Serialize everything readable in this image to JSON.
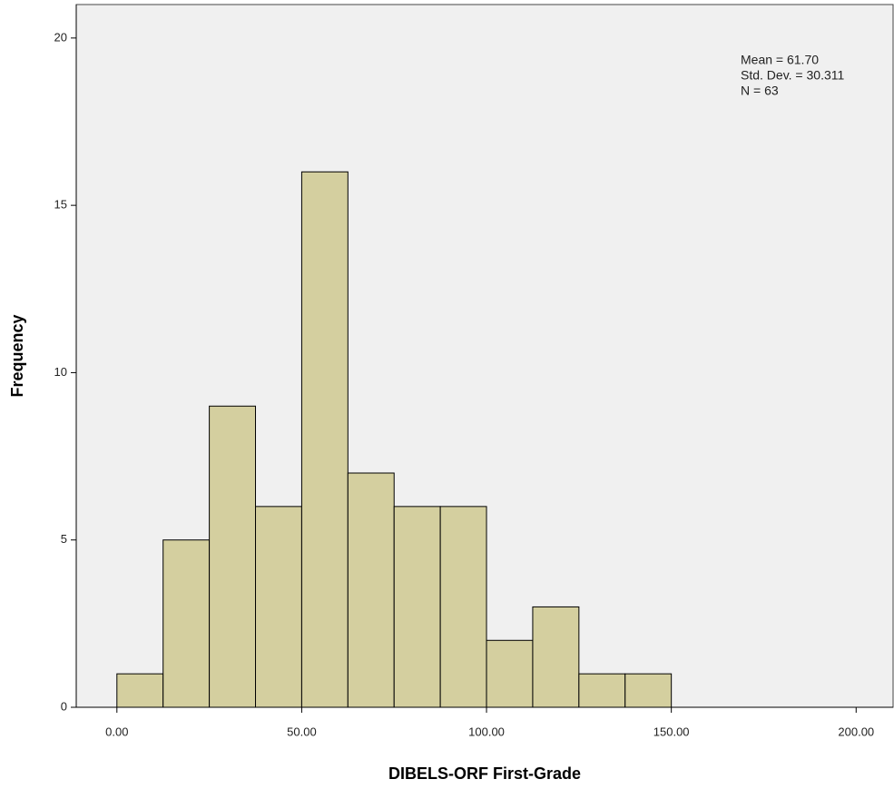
{
  "chart_data": {
    "type": "histogram",
    "x_label": "DIBELS-ORF First-Grade",
    "y_label": "Frequency",
    "annotations": [
      "Mean = 61.70",
      "Std. Dev. = 30.311",
      "N = 63"
    ],
    "bins": [
      0,
      12.5,
      25,
      37.5,
      50,
      62.5,
      75,
      87.5,
      100,
      112.5,
      125,
      137.5,
      150
    ],
    "counts": [
      1,
      5,
      9,
      6,
      16,
      7,
      6,
      6,
      2,
      3,
      1,
      1
    ],
    "color": "#d4cf9f",
    "xlim": [
      -11,
      210
    ],
    "ylim": [
      0,
      21
    ],
    "xticks": [
      {
        "value": 0,
        "label": "0.00"
      },
      {
        "value": 50,
        "label": "50.00"
      },
      {
        "value": 100,
        "label": "100.00"
      },
      {
        "value": 150,
        "label": "150.00"
      },
      {
        "value": 200,
        "label": "200.00"
      }
    ],
    "yticks": [
      0,
      5,
      10,
      15,
      20
    ],
    "grid": false
  }
}
